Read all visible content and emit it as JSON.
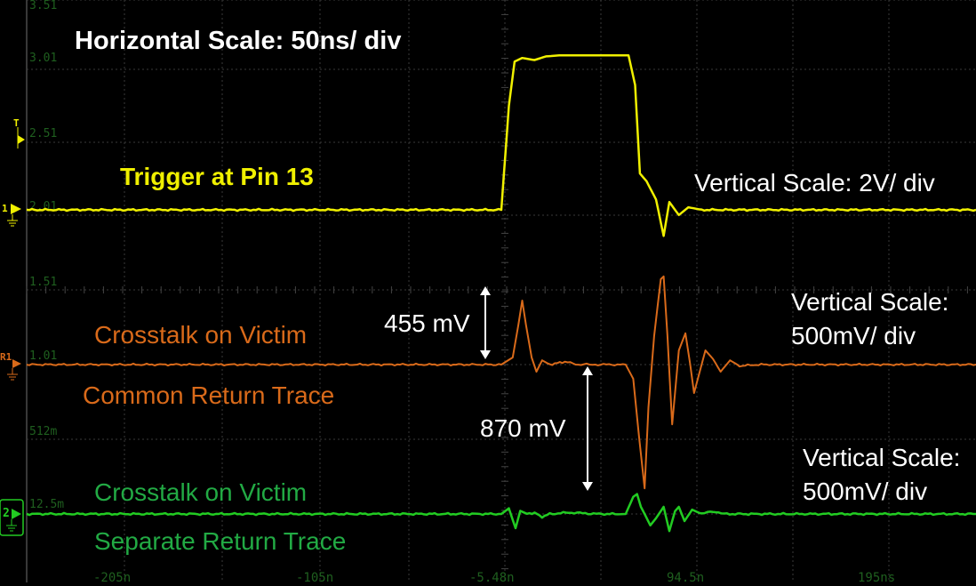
{
  "chart_data": {
    "type": "line",
    "x_axis": {
      "unit": "ns",
      "tick_labels": [
        "-205n",
        "-105n",
        "-5.48n",
        "94.5n",
        "195ns"
      ],
      "range": [
        -255.48,
        244.52
      ]
    },
    "scale_labels": [
      "3.51",
      "3.01",
      "2.51",
      "2.01",
      "1.51",
      "1.01",
      "512m",
      "12.5m"
    ],
    "channel_markers": {
      "trigger": "T",
      "ch1": "1",
      "r1": "R1",
      "ch2": "2"
    },
    "series": [
      {
        "name": "Trigger at Pin 13",
        "color": "#f0f000",
        "points": [
          [
            -255.5,
            0.0
          ],
          [
            -5.5,
            0.0
          ],
          [
            -1.5,
            2.0
          ],
          [
            1.5,
            2.85
          ],
          [
            5.5,
            2.92
          ],
          [
            12,
            2.88
          ],
          [
            18,
            2.95
          ],
          [
            25,
            2.97
          ],
          [
            40,
            2.97
          ],
          [
            55,
            2.97
          ],
          [
            61.5,
            2.97
          ],
          [
            65,
            2.4
          ],
          [
            67.5,
            0.7
          ],
          [
            71,
            0.55
          ],
          [
            76,
            0.2
          ],
          [
            80,
            -0.5
          ],
          [
            83,
            0.15
          ],
          [
            88,
            -0.1
          ],
          [
            93,
            0.05
          ],
          [
            100,
            0.0
          ],
          [
            244.5,
            0.0
          ]
        ]
      },
      {
        "name": "Crosstalk on Victim / Common Return Trace",
        "color": "#d96a1a",
        "points": [
          [
            -255.5,
            0.0
          ],
          [
            -5.5,
            0.0
          ],
          [
            0.5,
            0.05
          ],
          [
            3.5,
            0.28
          ],
          [
            5.5,
            0.45
          ],
          [
            7.5,
            0.28
          ],
          [
            10.5,
            0.05
          ],
          [
            13,
            -0.05
          ],
          [
            16,
            0.03
          ],
          [
            20,
            0.0
          ],
          [
            28,
            0.02
          ],
          [
            35,
            0.0
          ],
          [
            44,
            0.0
          ],
          [
            60,
            0.0
          ],
          [
            64,
            -0.1
          ],
          [
            67,
            -0.5
          ],
          [
            70,
            -0.87
          ],
          [
            72,
            -0.3
          ],
          [
            75,
            0.2
          ],
          [
            78.5,
            0.6
          ],
          [
            80,
            0.62
          ],
          [
            82,
            0.2
          ],
          [
            84.5,
            -0.42
          ],
          [
            86,
            -0.2
          ],
          [
            88,
            0.1
          ],
          [
            91.5,
            0.22
          ],
          [
            94,
            0.0
          ],
          [
            96,
            -0.2
          ],
          [
            99,
            -0.05
          ],
          [
            102,
            0.1
          ],
          [
            106,
            0.04
          ],
          [
            110,
            -0.05
          ],
          [
            115,
            0.03
          ],
          [
            120,
            -0.01
          ],
          [
            130,
            0.0
          ],
          [
            244.5,
            0.0
          ]
        ]
      },
      {
        "name": "Crosstalk on Victim / Separate Return Trace",
        "color": "#22cc22",
        "points": [
          [
            -255.5,
            0.0
          ],
          [
            -5.5,
            0.0
          ],
          [
            -1.5,
            0.04
          ],
          [
            2,
            -0.1
          ],
          [
            4.5,
            0.02
          ],
          [
            8,
            0.0
          ],
          [
            12,
            0.01
          ],
          [
            16,
            -0.02
          ],
          [
            20,
            0.0
          ],
          [
            30,
            0.01
          ],
          [
            46,
            0.0
          ],
          [
            60,
            0.0
          ],
          [
            64,
            0.12
          ],
          [
            66,
            0.14
          ],
          [
            68,
            0.05
          ],
          [
            70,
            0.0
          ],
          [
            73,
            -0.08
          ],
          [
            76,
            -0.03
          ],
          [
            80,
            0.05
          ],
          [
            83,
            -0.12
          ],
          [
            86,
            0.02
          ],
          [
            88,
            0.05
          ],
          [
            91,
            -0.05
          ],
          [
            95,
            0.03
          ],
          [
            100,
            0.0
          ],
          [
            106,
            0.02
          ],
          [
            112,
            0.0
          ],
          [
            244.5,
            0.0
          ]
        ]
      }
    ],
    "annotations": {
      "horizontal_scale": "Horizontal Scale: 50ns/ div",
      "trigger_label": "Trigger at Pin 13",
      "vertical_scale_ch1": "Vertical Scale: 2V/ div",
      "vertical_scale_r1_line1": "Vertical Scale:",
      "vertical_scale_r1_line2": "500mV/ div",
      "vertical_scale_ch2_line1": "Vertical Scale:",
      "vertical_scale_ch2_line2": "500mV/ div",
      "common_label_line1": "Crosstalk on Victim",
      "common_label_line2": "Common Return Trace",
      "separate_label_line1": "Crosstalk on Victim",
      "separate_label_line2": "Separate Return Trace",
      "measure_455": "455 mV",
      "measure_870": "870 mV"
    },
    "colors": {
      "background": "#000000",
      "grid": "#3a3a3a",
      "annotation_white": "#ffffff",
      "ch1_yellow": "#f0f000",
      "r1_orange": "#d96a1a",
      "ch2_green": "#22cc22",
      "scale_label_green": "#1f5f1f"
    }
  }
}
